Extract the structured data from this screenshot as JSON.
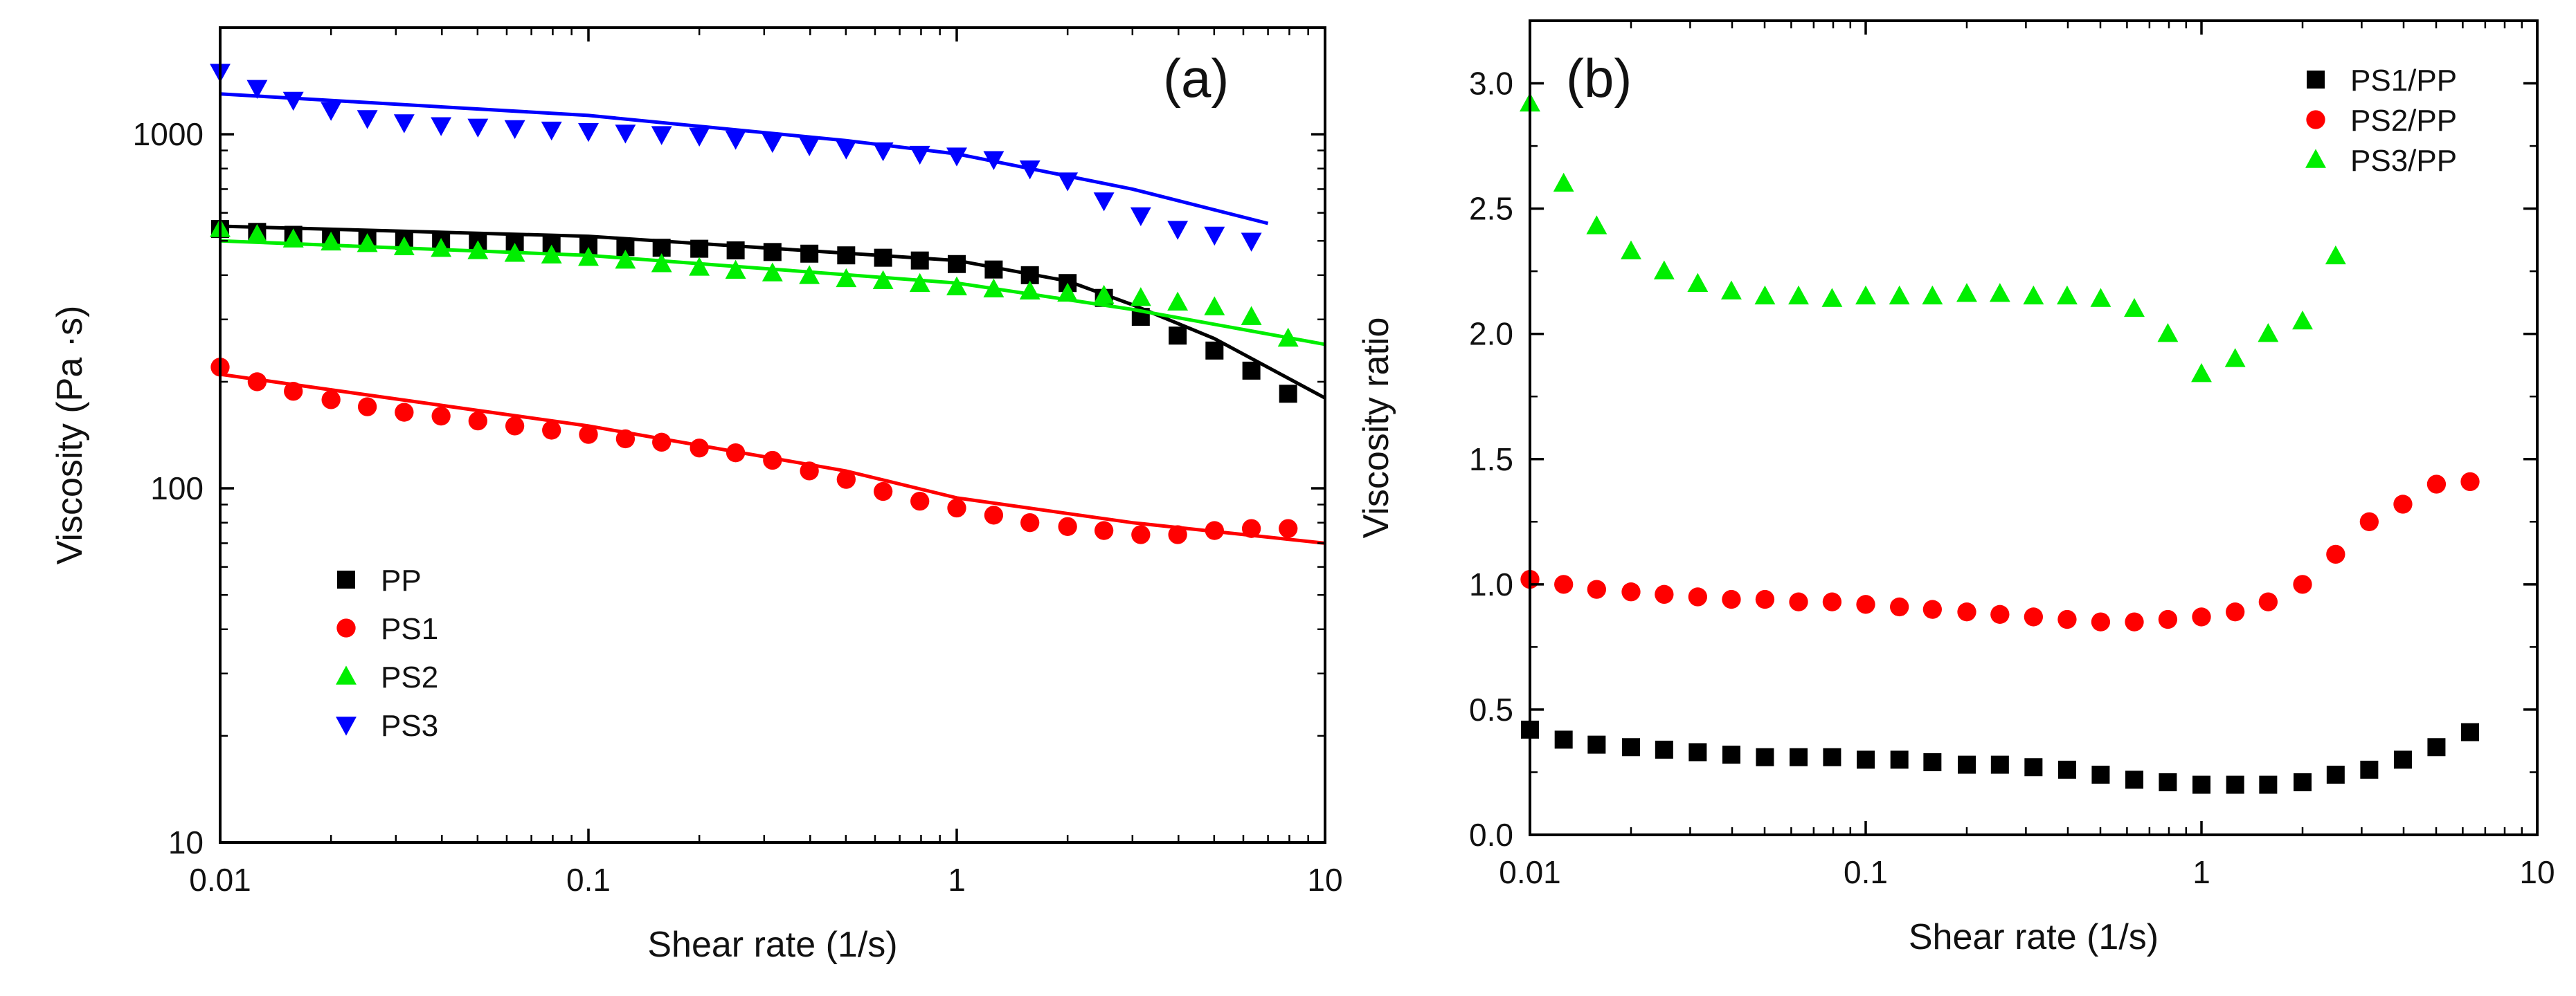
{
  "chart_data": [
    {
      "panel": "(a)",
      "type": "scatter",
      "xscale": "log",
      "yscale": "log",
      "xlabel": "Shear rate (1/s)",
      "ylabel": "Viscosity (Pa ·s)",
      "xlim": [
        0.01,
        10
      ],
      "ylim": [
        10,
        2000
      ],
      "xticks": [
        "0.01",
        "0.1",
        "1",
        "10"
      ],
      "yticks": [
        "10",
        "100",
        "1000"
      ],
      "legend_position": "lower-left",
      "x": [
        0.01,
        0.0126,
        0.0158,
        0.02,
        0.0251,
        0.0316,
        0.0398,
        0.0501,
        0.0631,
        0.0794,
        0.1,
        0.126,
        0.158,
        0.2,
        0.251,
        0.316,
        0.398,
        0.501,
        0.631,
        0.794,
        1,
        1.26,
        1.58,
        2,
        2.51,
        3.16,
        3.98,
        5.01,
        6.31,
        7.94,
        10
      ],
      "series": [
        {
          "name": "PP",
          "color": "#000000",
          "marker": "square",
          "values": [
            540,
            530,
            520,
            510,
            505,
            500,
            498,
            495,
            490,
            487,
            485,
            480,
            478,
            475,
            470,
            465,
            460,
            455,
            448,
            440,
            430,
            415,
            400,
            380,
            345,
            305,
            270,
            245,
            215,
            185,
            null
          ],
          "fit": [
            [
              0.01,
              550
            ],
            [
              0.1,
              515
            ],
            [
              1,
              440
            ],
            [
              2,
              385
            ],
            [
              3,
              330
            ],
            [
              5,
              265
            ],
            [
              10,
              180
            ]
          ]
        },
        {
          "name": "PS1",
          "color": "#ff0000",
          "marker": "circle",
          "values": [
            220,
            200,
            188,
            178,
            170,
            164,
            160,
            155,
            150,
            146,
            142,
            138,
            135,
            130,
            126,
            120,
            112,
            106,
            98,
            92,
            88,
            84,
            80,
            78,
            76,
            74,
            74,
            76,
            77,
            77,
            null
          ],
          "fit": [
            [
              0.01,
              210
            ],
            [
              0.1,
              150
            ],
            [
              0.5,
              112
            ],
            [
              1,
              94
            ],
            [
              3,
              80
            ],
            [
              10,
              70
            ]
          ]
        },
        {
          "name": "PS2",
          "color": "#00ee00",
          "marker": "triangle-up",
          "values": [
            540,
            520,
            505,
            495,
            490,
            480,
            475,
            468,
            460,
            455,
            448,
            440,
            430,
            420,
            412,
            405,
            398,
            390,
            385,
            378,
            370,
            365,
            360,
            355,
            350,
            345,
            335,
            325,
            305,
            265,
            null
          ],
          "fit": [
            [
              0.01,
              500
            ],
            [
              0.1,
              455
            ],
            [
              1,
              380
            ],
            [
              3,
              320
            ],
            [
              10,
              255
            ]
          ]
        },
        {
          "name": "PS3",
          "color": "#0000ff",
          "marker": "triangle-down",
          "values": [
            1500,
            1350,
            1250,
            1170,
            1110,
            1080,
            1060,
            1050,
            1040,
            1030,
            1020,
            1010,
            1000,
            990,
            970,
            950,
            930,
            910,
            900,
            880,
            870,
            850,
            800,
            740,
            650,
            590,
            540,
            520,
            500,
            null,
            null
          ],
          "fit": [
            [
              0.01,
              1300
            ],
            [
              0.1,
              1130
            ],
            [
              0.5,
              960
            ],
            [
              1,
              880
            ],
            [
              3,
              700
            ],
            [
              7,
              560
            ]
          ]
        }
      ]
    },
    {
      "panel": "(b)",
      "type": "scatter",
      "xscale": "log",
      "yscale": "linear",
      "xlabel": "Shear rate (1/s)",
      "ylabel": "Viscosity ratio",
      "xlim": [
        0.01,
        10
      ],
      "ylim": [
        0.0,
        3.25
      ],
      "xticks": [
        "0.01",
        "0.1",
        "1",
        "10"
      ],
      "yticks": [
        "0.0",
        "0.5",
        "1.0",
        "1.5",
        "2.0",
        "2.5",
        "3.0"
      ],
      "legend_position": "top-right",
      "x": [
        0.01,
        0.0126,
        0.0158,
        0.02,
        0.0251,
        0.0316,
        0.0398,
        0.0501,
        0.0631,
        0.0794,
        0.1,
        0.126,
        0.158,
        0.2,
        0.251,
        0.316,
        0.398,
        0.501,
        0.631,
        0.794,
        1,
        1.26,
        1.58,
        2,
        2.51,
        3.16,
        3.98,
        5.01,
        6.31,
        7.94,
        10
      ],
      "series": [
        {
          "name": "PS1/PP",
          "color": "#000000",
          "marker": "square",
          "values": [
            0.42,
            0.38,
            0.36,
            0.35,
            0.34,
            0.33,
            0.32,
            0.31,
            0.31,
            0.31,
            0.3,
            0.3,
            0.29,
            0.28,
            0.28,
            0.27,
            0.26,
            0.24,
            0.22,
            0.21,
            0.2,
            0.2,
            0.2,
            0.21,
            0.24,
            0.26,
            0.3,
            0.35,
            0.41,
            null,
            null
          ]
        },
        {
          "name": "PS2/PP",
          "color": "#ff0000",
          "marker": "circle",
          "values": [
            1.02,
            1.0,
            0.98,
            0.97,
            0.96,
            0.95,
            0.94,
            0.94,
            0.93,
            0.93,
            0.92,
            0.91,
            0.9,
            0.89,
            0.88,
            0.87,
            0.86,
            0.85,
            0.85,
            0.86,
            0.87,
            0.89,
            0.93,
            1.0,
            1.12,
            1.25,
            1.32,
            1.4,
            1.41,
            null,
            null
          ]
        },
        {
          "name": "PS3/PP",
          "color": "#00ee00",
          "marker": "triangle-up",
          "values": [
            2.92,
            2.6,
            2.43,
            2.33,
            2.25,
            2.2,
            2.17,
            2.15,
            2.15,
            2.14,
            2.15,
            2.15,
            2.15,
            2.16,
            2.16,
            2.15,
            2.15,
            2.14,
            2.1,
            2.0,
            1.84,
            1.9,
            2.0,
            2.05,
            2.31,
            null,
            null,
            null,
            null,
            null,
            null
          ]
        }
      ]
    }
  ]
}
